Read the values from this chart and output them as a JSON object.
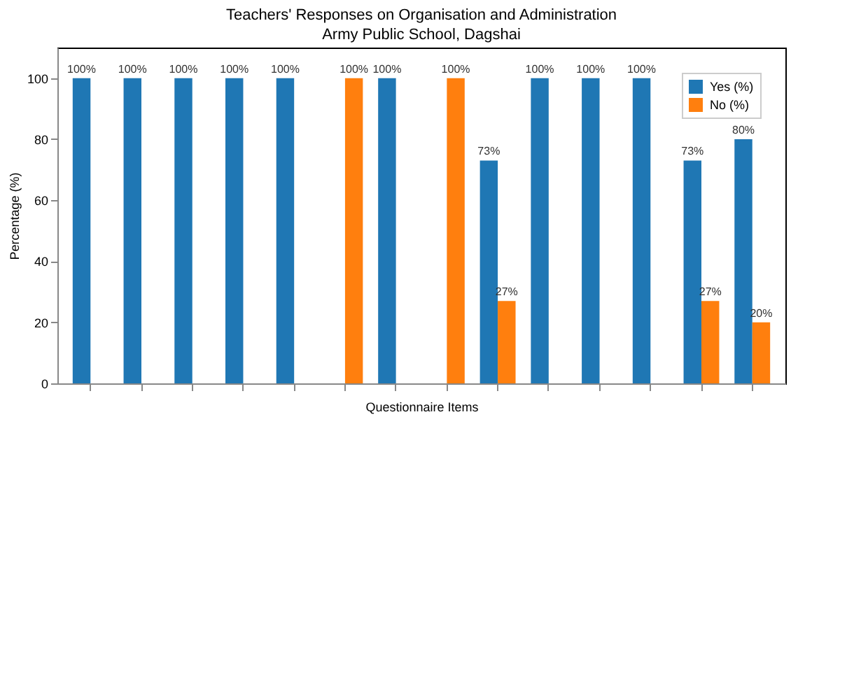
{
  "chart_data": {
    "type": "bar",
    "title": "Teachers' Responses on Organisation and Administration",
    "subtitle": "Army Public School, Dagshai",
    "xlabel": "Questionnaire Items",
    "ylabel": "Percentage (%)",
    "categories": [
      null,
      null,
      null,
      null,
      null,
      null,
      null,
      null,
      null,
      null,
      null,
      null,
      null,
      null
    ],
    "series": [
      {
        "name": "Yes (%)",
        "color": "#1f77b4",
        "values": [
          100,
          100,
          100,
          100,
          100,
          0,
          100,
          0,
          73,
          100,
          100,
          100,
          73,
          80
        ],
        "value_labels": [
          "100%",
          "100%",
          "100%",
          "100%",
          "100%",
          null,
          "100%",
          null,
          "73%",
          "100%",
          "100%",
          "100%",
          "73%",
          "80%"
        ]
      },
      {
        "name": "No (%)",
        "color": "#ff7f0e",
        "values": [
          0,
          0,
          0,
          0,
          0,
          100,
          0,
          100,
          27,
          0,
          0,
          0,
          27,
          20
        ],
        "value_labels": [
          null,
          null,
          null,
          null,
          null,
          "100%",
          null,
          "100%",
          "27%",
          null,
          null,
          null,
          "27%",
          "20%"
        ]
      }
    ],
    "ylim": [
      0,
      110
    ],
    "yticks": [
      0,
      20,
      40,
      60,
      80,
      100
    ],
    "grid": false,
    "legend": "top right"
  }
}
